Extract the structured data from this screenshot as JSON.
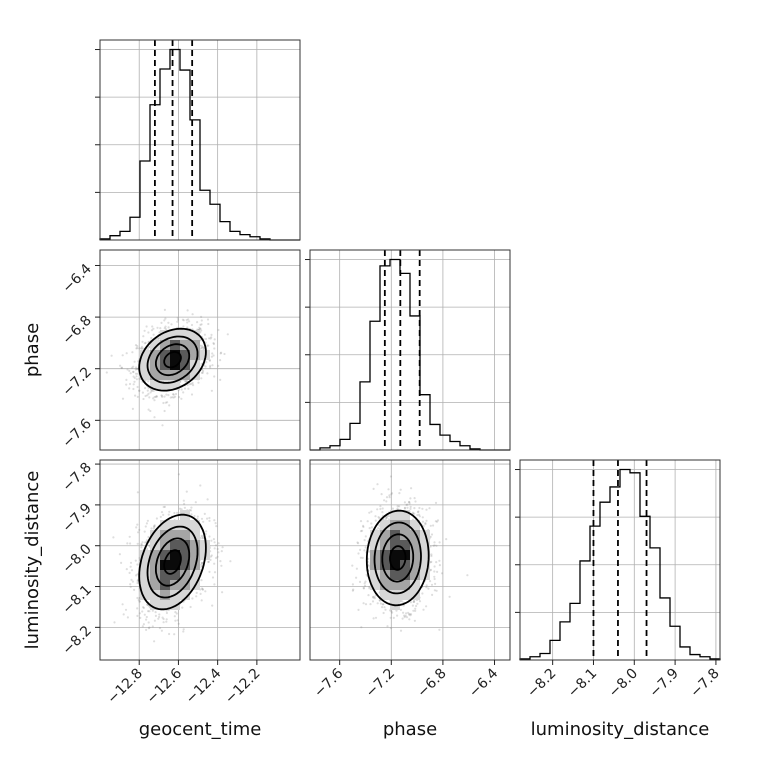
{
  "chart_data": {
    "type": "corner",
    "parameters": [
      "geocent_time",
      "phase",
      "luminosity_distance"
    ],
    "axes": {
      "geocent_time": {
        "label": "geocent_time",
        "range": [
          -13.0,
          -11.98
        ],
        "ticks": [
          -12.8,
          -12.6,
          -12.4,
          -12.2
        ],
        "tick_labels": [
          "−12.8",
          "−12.6",
          "−12.4",
          "−12.2"
        ]
      },
      "phase": {
        "label": "phase",
        "range": [
          -7.83,
          -6.28
        ],
        "ticks": [
          -7.6,
          -7.2,
          -6.8,
          -6.4
        ],
        "tick_labels": [
          "−7.6",
          "−7.2",
          "−6.8",
          "−6.4"
        ]
      },
      "luminosity_distance": {
        "label": "luminosity_distance",
        "range": [
          -8.28,
          -7.79
        ],
        "ticks": [
          -8.2,
          -8.1,
          -8.0,
          -7.9,
          -7.8
        ],
        "tick_labels": [
          "−8.2",
          "−8.1",
          "−8.0",
          "−7.9",
          "−7.8"
        ]
      }
    },
    "marginals": [
      {
        "parameter": "geocent_time",
        "bin_edges": [
          -13.0,
          -12.949,
          -12.898,
          -12.847,
          -12.796,
          -12.745,
          -12.694,
          -12.643,
          -12.592,
          -12.541,
          -12.49,
          -12.439,
          -12.388,
          -12.337,
          -12.286,
          -12.235,
          -12.184,
          -12.133,
          -12.082,
          -12.031,
          -11.98
        ],
        "counts": [
          1,
          4,
          8,
          21,
          73,
          125,
          158,
          176,
          157,
          111,
          46,
          33,
          17,
          8,
          5,
          3,
          1,
          0,
          0,
          0
        ],
        "quantiles": [
          -12.72,
          -12.63,
          -12.53
        ]
      },
      {
        "parameter": "phase",
        "bin_edges": [
          -7.83,
          -7.7525,
          -7.675,
          -7.5975,
          -7.52,
          -7.4425,
          -7.365,
          -7.2875,
          -7.21,
          -7.1325,
          -7.055,
          -6.9775,
          -6.9,
          -6.8225,
          -6.745,
          -6.6675,
          -6.59,
          -6.5125,
          -6.435,
          -6.3575,
          -6.28
        ],
        "counts": [
          0,
          2,
          4,
          10,
          25,
          64,
          121,
          173,
          179,
          166,
          126,
          52,
          24,
          14,
          8,
          4,
          1,
          0,
          0,
          0
        ],
        "quantiles": [
          -7.25,
          -7.13,
          -6.98
        ]
      },
      {
        "parameter": "luminosity_distance",
        "bin_edges": [
          -8.28,
          -8.2555,
          -8.231,
          -8.2065,
          -8.182,
          -8.1575,
          -8.133,
          -8.1085,
          -8.084,
          -8.0595,
          -8.035,
          -8.0105,
          -7.986,
          -7.9615,
          -7.937,
          -7.9125,
          -7.888,
          -7.8635,
          -7.839,
          -7.8145,
          -7.79
        ],
        "counts": [
          1,
          3,
          6,
          18,
          35,
          52,
          91,
          123,
          145,
          159,
          175,
          172,
          132,
          103,
          57,
          31,
          12,
          5,
          3,
          1
        ],
        "quantiles": [
          -8.1,
          -8.04,
          -7.97
        ]
      }
    ],
    "pairs": [
      {
        "x": "geocent_time",
        "y": "phase",
        "center": [
          -12.63,
          -7.13
        ],
        "sigma": [
          0.085,
          0.12
        ],
        "correlation": 0.25
      },
      {
        "x": "geocent_time",
        "y": "luminosity_distance",
        "center": [
          -12.63,
          -8.04
        ],
        "sigma": [
          0.085,
          0.058
        ],
        "correlation": 0.3
      },
      {
        "x": "phase",
        "y": "luminosity_distance",
        "center": [
          -7.15,
          -8.03
        ],
        "sigma": [
          0.12,
          0.058
        ],
        "correlation": 0.05
      }
    ],
    "contour_levels_sigma": [
      0.5,
      1.0,
      1.5,
      2.0
    ],
    "grid": true
  }
}
